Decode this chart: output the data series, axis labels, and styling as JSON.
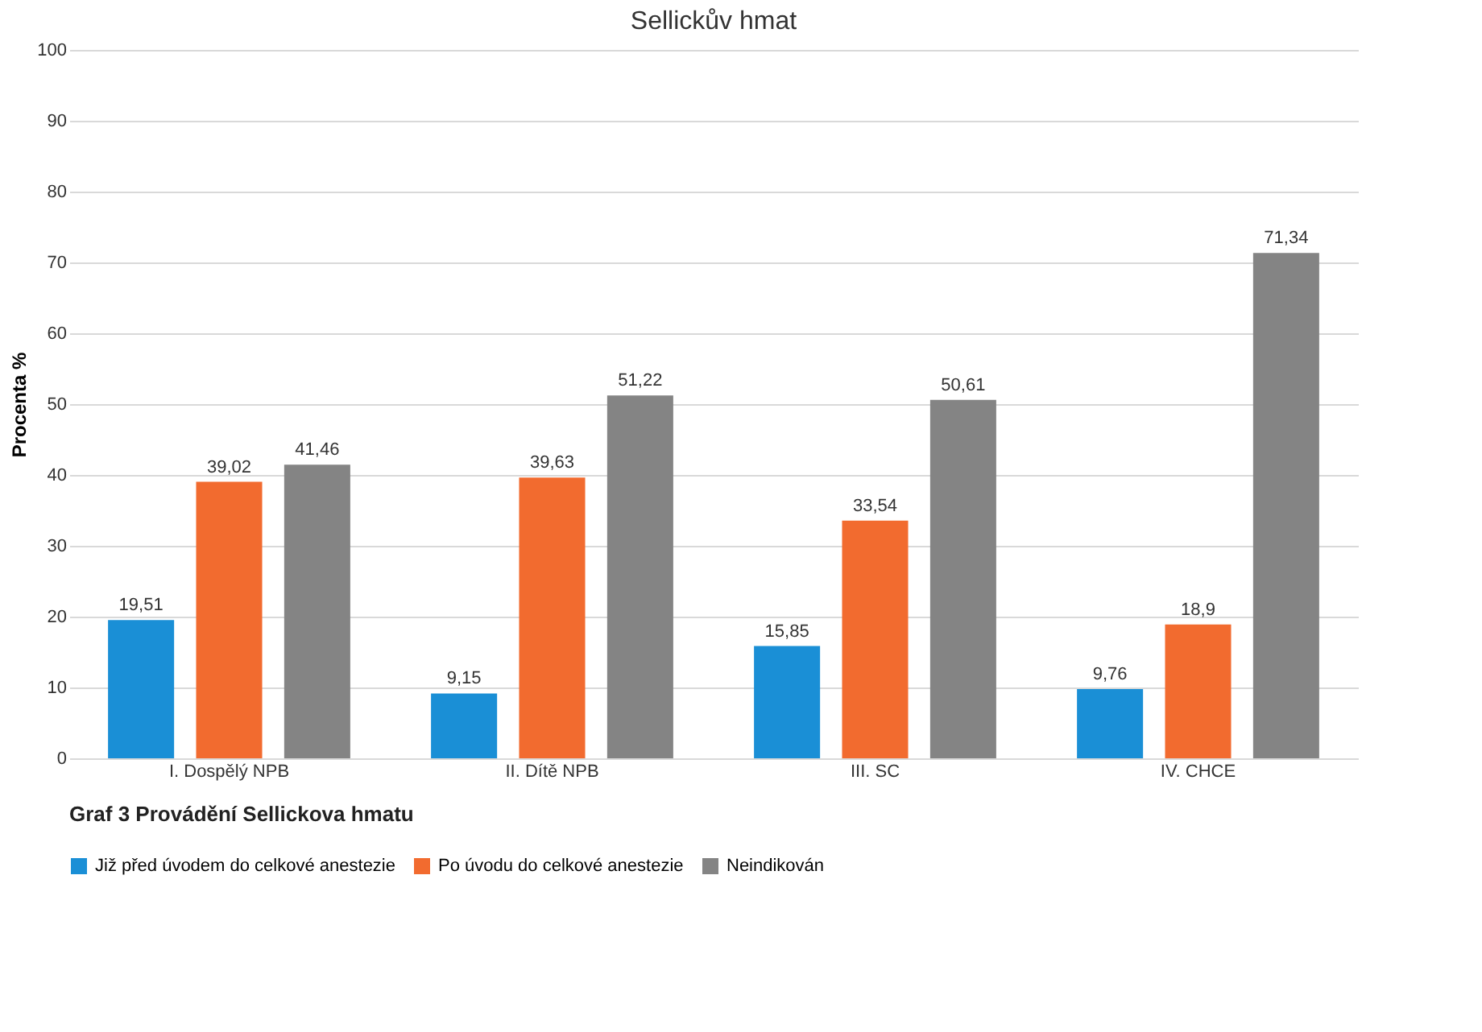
{
  "chart_data": {
    "type": "bar",
    "title": "Sellickův hmat",
    "ylabel": "Procenta %",
    "categories": [
      "I. Dospělý NPB",
      "II. Dítě NPB",
      "III. SC",
      "IV. CHCE"
    ],
    "series": [
      {
        "name": "Již před úvodem do celkové anestezie",
        "color": "#1a8fd6",
        "values": [
          19.51,
          9.15,
          15.85,
          9.76
        ],
        "value_labels": [
          "19,51",
          "9,15",
          "15,85",
          "9,76"
        ]
      },
      {
        "name": "Po úvodu do celkové anestezie",
        "color": "#f26b2f",
        "values": [
          39.02,
          39.63,
          33.54,
          18.9
        ],
        "value_labels": [
          "39,02",
          "39,63",
          "33,54",
          "18,9"
        ]
      },
      {
        "name": "Neindikován",
        "color": "#848484",
        "values": [
          41.46,
          51.22,
          50.61,
          71.34
        ],
        "value_labels": [
          "41,46",
          "51,22",
          "50,61",
          "71,34"
        ]
      }
    ],
    "ylim": [
      0,
      100
    ],
    "yticks": [
      0,
      10,
      20,
      30,
      40,
      50,
      60,
      70,
      80,
      90,
      100
    ],
    "grid": "y",
    "legend": "bottom",
    "annotations": [
      "Graf 3   Provádění Sellickova hmatu"
    ]
  }
}
